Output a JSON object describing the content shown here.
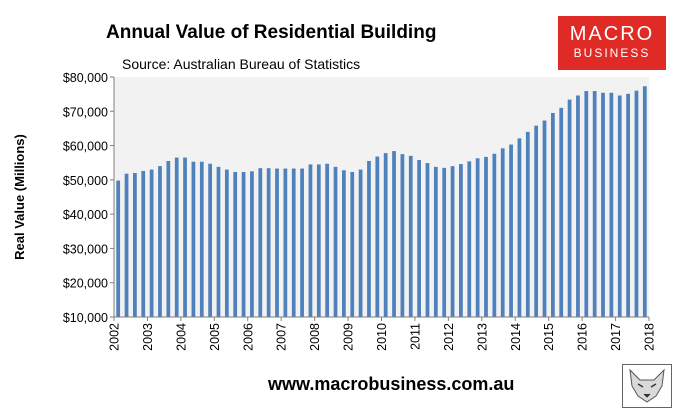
{
  "header": {
    "title": "Annual Value of Residential Building",
    "subtitle": "Source: Australian Bureau of Statistics"
  },
  "logo": {
    "line1": "MACRO",
    "line2": "BUSINESS",
    "color": "#e02a26"
  },
  "footer": {
    "url": "www.macrobusiness.com.au"
  },
  "chart_data": {
    "type": "bar",
    "title": "Annual Value of Residential Building",
    "subtitle": "Source: Australian Bureau of Statistics",
    "ylabel": "Real Value (Millions)",
    "xlabel": "",
    "ylim": [
      10000,
      80000
    ],
    "y_ticks": [
      "$10,000",
      "$20,000",
      "$30,000",
      "$40,000",
      "$50,000",
      "$60,000",
      "$70,000",
      "$80,000"
    ],
    "x_ticks": [
      "2002",
      "2003",
      "2004",
      "2005",
      "2006",
      "2007",
      "2008",
      "2009",
      "2010",
      "2011",
      "2012",
      "2013",
      "2014",
      "2015",
      "2016",
      "2017",
      "2018"
    ],
    "frequency": "quarterly",
    "grid": false,
    "bar_color": "#4f81bd",
    "plot_background": "#f2f2f2",
    "series": [
      {
        "values": [
          49800,
          51800,
          52000,
          52600,
          53000,
          54000,
          55500,
          56500,
          56500,
          55300,
          55300,
          54700,
          53800,
          53000,
          52300,
          52300,
          52500,
          53400,
          53400,
          53300,
          53300,
          53300,
          53300,
          54500,
          54500,
          54700,
          53800,
          52800,
          52300,
          53000,
          55500,
          56800,
          57800,
          58400,
          57500,
          57000,
          55800,
          54900,
          53800,
          53500,
          54000,
          54600,
          55400,
          56300,
          56700,
          57600,
          59200,
          60300,
          62100,
          64000,
          65800,
          67300,
          69500,
          71000,
          73400,
          74600,
          75900,
          75900,
          75400,
          75400,
          74600,
          75100,
          76000,
          77300
        ]
      }
    ]
  }
}
